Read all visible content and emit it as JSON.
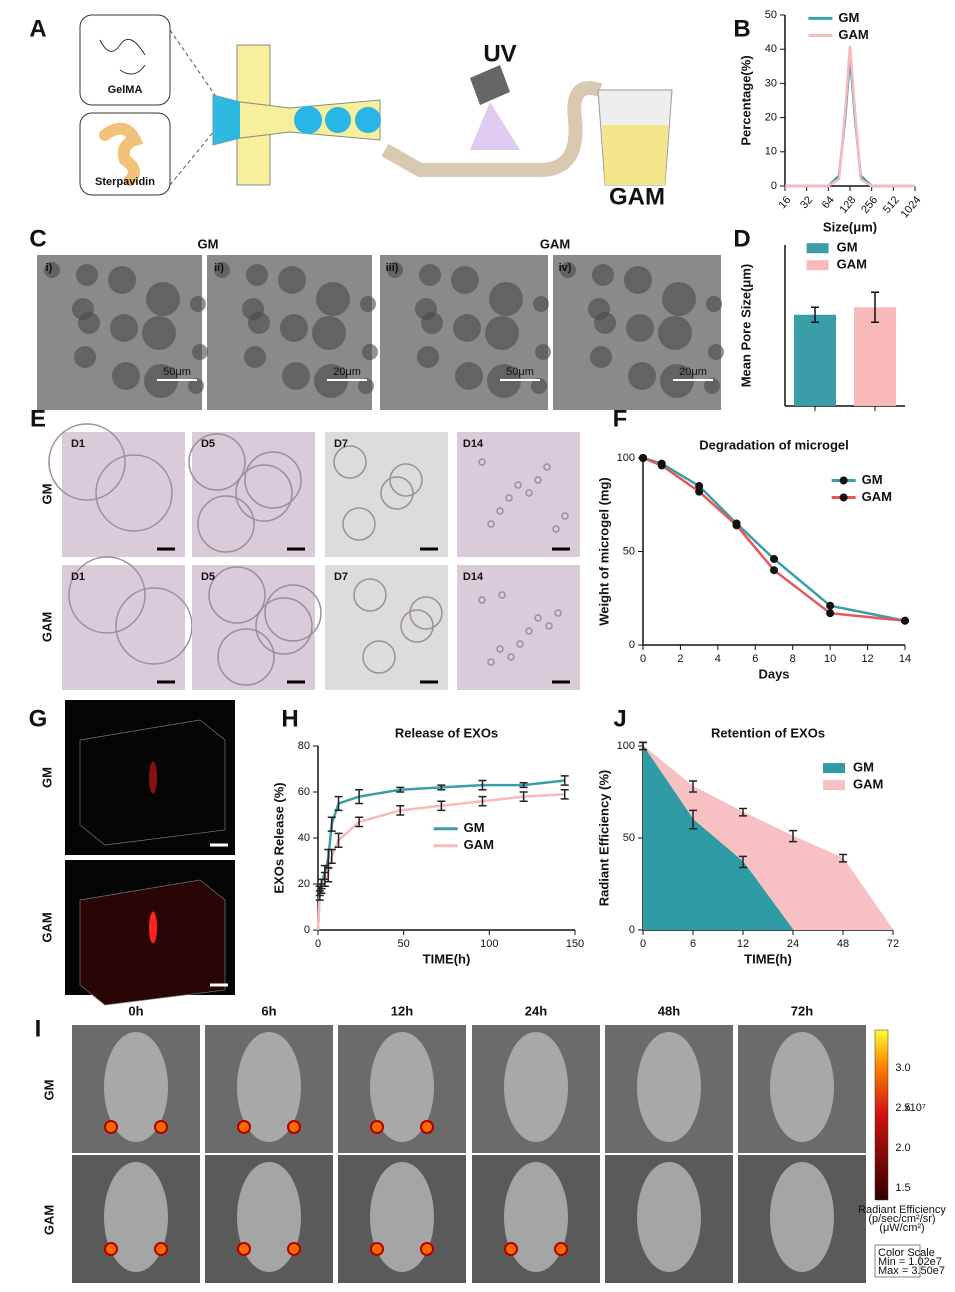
{
  "figure": {
    "letters": {
      "A": "A",
      "B": "B",
      "C": "C",
      "D": "D",
      "E": "E",
      "F": "F",
      "G": "G",
      "H": "H",
      "J": "J",
      "I": "I"
    },
    "a": {
      "gelma": "GelMA",
      "sterpavidin": "Sterpavidin",
      "uv": "UV",
      "gam": "GAM"
    },
    "c": {
      "gm": "GM",
      "gam": "GAM",
      "panels": [
        "i)",
        "ii)",
        "iii)",
        "iv)"
      ],
      "scale": [
        "50μm",
        "20μm",
        "50μm",
        "20μm"
      ]
    },
    "e": {
      "rows": [
        "GM",
        "GAM"
      ],
      "days": [
        "D1",
        "D5",
        "D7",
        "D14",
        "D1",
        "D5",
        "D7",
        "D14"
      ]
    },
    "g": {
      "rows": [
        "GM",
        "GAM"
      ]
    },
    "i": {
      "rows": [
        "GM",
        "GAM"
      ],
      "times": [
        "0h",
        "6h",
        "12h",
        "24h",
        "48h",
        "72h"
      ],
      "colorbar_ticks": [
        "3.0",
        "2.5",
        "2.0",
        "1.5"
      ],
      "exponent": "x10⁷",
      "unit": [
        "Radiant Efficiency",
        "(p/sec/cm²/sr)",
        "(μW/cm²)"
      ],
      "scale": [
        "Color Scale",
        "Min = 1.02e7",
        "Max = 3.50e7"
      ]
    }
  },
  "chart_data": [
    {
      "type": "line",
      "xlog": true,
      "xlabel": "Size(μm)",
      "ylabel": "Percentage(%)",
      "x": [
        16,
        32,
        64,
        90,
        110,
        128,
        150,
        180,
        256,
        512,
        1024
      ],
      "series": [
        {
          "name": "GM",
          "color": "#3a9ea8",
          "values": [
            0,
            0,
            0,
            3,
            20,
            38,
            20,
            3,
            0,
            0,
            0
          ]
        },
        {
          "name": "GAM",
          "color": "#f9b9bb",
          "values": [
            0,
            0,
            0,
            2,
            22,
            41,
            22,
            2,
            0,
            0,
            0
          ]
        }
      ],
      "xlim": [
        16,
        1024
      ],
      "xticks": [
        16,
        32,
        64,
        128,
        256,
        512,
        1024
      ],
      "ylim": [
        0,
        50
      ],
      "yticks": [
        0,
        10,
        20,
        30,
        40,
        50
      ],
      "legend": "upper center"
    },
    {
      "type": "bar",
      "ylabel": "Mean Pore Size(μm)",
      "categories": [
        "GM",
        "GAM"
      ],
      "values": [
        8.5,
        9.2
      ],
      "errors": [
        0.7,
        1.4
      ],
      "colors": [
        "#3a9ea8",
        "#f9b9bb"
      ],
      "ylim": [
        0,
        15
      ],
      "legend": "upper center"
    },
    {
      "type": "line",
      "title": "Degradation of microgel",
      "xlabel": "Days",
      "ylabel": "Weight of microgel (mg)",
      "x": [
        0,
        1,
        3,
        5,
        7,
        10,
        14
      ],
      "series": [
        {
          "name": "GM",
          "color": "#3a9ea8",
          "values": [
            100,
            97,
            85,
            65,
            46,
            21,
            13
          ]
        },
        {
          "name": "GAM",
          "color": "#e8555a",
          "values": [
            100,
            96,
            82,
            64,
            40,
            17,
            13
          ]
        }
      ],
      "marker_color": "#111111",
      "xlim": [
        0,
        14
      ],
      "xticks": [
        0,
        2,
        4,
        6,
        8,
        10,
        12,
        14
      ],
      "ylim": [
        0,
        100
      ],
      "yticks": [
        0,
        50,
        100
      ],
      "legend": "upper right"
    },
    {
      "type": "line",
      "title": "Release of EXOs",
      "xlabel": "TIME(h)",
      "ylabel": "EXOs Release (%)",
      "x": [
        0,
        1,
        2,
        4,
        6,
        8,
        12,
        24,
        48,
        72,
        96,
        120,
        144
      ],
      "series": [
        {
          "name": "GM",
          "color": "#3a9ea8",
          "values": [
            0,
            17,
            20,
            25,
            31,
            46,
            55,
            58,
            61,
            62,
            63,
            63,
            65
          ],
          "errors": [
            0,
            2,
            2,
            3,
            4,
            3,
            3,
            3,
            1,
            1,
            2,
            1,
            2
          ]
        },
        {
          "name": "GAM",
          "color": "#f9b9bb",
          "values": [
            0,
            15,
            18,
            22,
            24,
            32,
            39,
            47,
            52,
            54,
            56,
            58,
            59
          ],
          "errors": [
            0,
            2,
            2,
            3,
            3,
            3,
            3,
            2,
            2,
            2,
            2,
            2,
            2
          ]
        }
      ],
      "xlim": [
        0,
        150
      ],
      "xticks": [
        0,
        50,
        100,
        150
      ],
      "ylim": [
        0,
        80
      ],
      "yticks": [
        0,
        20,
        40,
        60,
        80
      ],
      "legend": "center right"
    },
    {
      "type": "area",
      "title": "Retention of EXOs",
      "xlabel": "TIME(h)",
      "ylabel": "Radiant Efficiency (%)",
      "categories": [
        "0",
        "6",
        "12",
        "24",
        "48",
        "72"
      ],
      "series": [
        {
          "name": "GM",
          "color": "#2f9ba5",
          "values": [
            100,
            60,
            37,
            0,
            null,
            null
          ],
          "errors": [
            2,
            5,
            3,
            0,
            null,
            null
          ]
        },
        {
          "name": "GAM",
          "color": "#f7c1c3",
          "values": [
            100,
            78,
            64,
            51,
            39,
            0
          ],
          "errors": [
            2,
            3,
            2,
            3,
            2,
            0
          ]
        }
      ],
      "ylim": [
        0,
        100
      ],
      "yticks": [
        0,
        50,
        100
      ],
      "legend": "upper right"
    }
  ]
}
